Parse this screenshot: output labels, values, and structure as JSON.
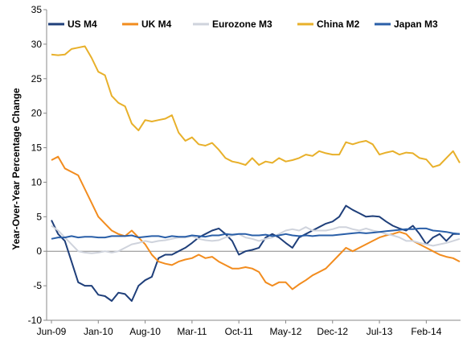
{
  "chart_data": {
    "type": "line",
    "title": "",
    "xlabel": "",
    "ylabel": "Year-Over-Year Percentage Change",
    "ylim": [
      -10,
      35
    ],
    "yticks": [
      -10,
      -5,
      0,
      5,
      10,
      15,
      20,
      25,
      30,
      35
    ],
    "x_tick_labels": [
      "Jun-09",
      "Jan-10",
      "Aug-10",
      "Mar-11",
      "Oct-11",
      "May-12",
      "Dec-12",
      "Jul-13",
      "Feb-14"
    ],
    "x_start": "2009-06",
    "x_end": "2014-07",
    "grid": false,
    "legend_position": "top",
    "series": [
      {
        "name": "US M4",
        "color": "#1f3f7a",
        "values": [
          4.5,
          2.5,
          1.5,
          -1.5,
          -4.5,
          -5.0,
          -5.0,
          -6.3,
          -6.5,
          -7.2,
          -6.0,
          -6.2,
          -7.2,
          -5.0,
          -4.2,
          -3.7,
          -1.0,
          -0.5,
          -0.5,
          0.0,
          0.5,
          1.2,
          2.0,
          2.5,
          3.0,
          3.3,
          2.5,
          1.5,
          -0.5,
          0.0,
          0.2,
          0.5,
          2.0,
          2.5,
          2.0,
          1.2,
          0.5,
          2.0,
          2.5,
          3.0,
          3.5,
          4.0,
          4.3,
          5.0,
          6.6,
          6.0,
          5.5,
          5.0,
          5.1,
          5.0,
          4.3,
          3.7,
          3.3,
          3.0,
          3.7,
          2.5,
          1.0,
          2.0,
          2.5,
          1.5,
          2.5,
          2.5
        ]
      },
      {
        "name": "UK M4",
        "color": "#f28c1e",
        "values": [
          13.2,
          13.7,
          12.0,
          11.5,
          11.0,
          9.0,
          7.0,
          5.0,
          4.0,
          3.0,
          2.5,
          2.2,
          3.0,
          2.0,
          1.0,
          -0.5,
          -1.5,
          -1.8,
          -2.0,
          -1.5,
          -1.2,
          -1.0,
          -0.5,
          -1.0,
          -0.8,
          -1.5,
          -2.0,
          -2.5,
          -2.5,
          -2.3,
          -2.5,
          -3.0,
          -4.5,
          -5.0,
          -4.5,
          -4.5,
          -5.5,
          -4.8,
          -4.2,
          -3.5,
          -3.0,
          -2.5,
          -1.5,
          -0.5,
          0.5,
          0.0,
          0.5,
          1.0,
          1.5,
          2.0,
          2.3,
          2.5,
          2.8,
          2.5,
          1.5,
          1.0,
          0.5,
          0.0,
          -0.5,
          -0.8,
          -1.0,
          -1.5
        ]
      },
      {
        "name": "Eurozone M3",
        "color": "#cfd3dc",
        "values": [
          3.7,
          3.0,
          2.0,
          1.0,
          0.0,
          -0.2,
          -0.3,
          -0.2,
          0.0,
          -0.2,
          0.0,
          0.5,
          1.0,
          1.2,
          1.5,
          1.3,
          1.5,
          1.6,
          1.8,
          2.0,
          2.0,
          2.2,
          1.8,
          1.6,
          1.5,
          1.6,
          2.0,
          2.3,
          2.5,
          2.0,
          1.8,
          1.5,
          1.8,
          2.0,
          2.5,
          3.0,
          3.2,
          3.0,
          3.5,
          3.0,
          3.0,
          3.0,
          3.2,
          3.5,
          3.5,
          3.2,
          3.0,
          3.3,
          3.0,
          2.8,
          2.5,
          2.3,
          2.0,
          1.5,
          1.5,
          1.2,
          1.0,
          0.8,
          1.0,
          1.2,
          1.5,
          1.8
        ]
      },
      {
        "name": "China M2",
        "color": "#e8b02a",
        "values": [
          28.5,
          28.4,
          28.5,
          29.3,
          29.5,
          29.7,
          28.0,
          26.0,
          25.5,
          22.5,
          21.5,
          21.0,
          18.5,
          17.5,
          19.0,
          18.8,
          19.0,
          19.2,
          19.7,
          17.2,
          16.0,
          16.5,
          15.5,
          15.3,
          15.7,
          14.7,
          13.5,
          13.0,
          12.8,
          12.5,
          13.5,
          12.5,
          13.0,
          12.8,
          13.5,
          13.0,
          13.2,
          13.5,
          14.0,
          13.8,
          14.5,
          14.2,
          14.0,
          14.0,
          15.8,
          15.5,
          15.8,
          16.0,
          15.5,
          14.0,
          14.3,
          14.5,
          14.0,
          14.3,
          14.2,
          13.5,
          13.3,
          12.2,
          12.5,
          13.5,
          14.5,
          12.8
        ]
      },
      {
        "name": "Japan M3",
        "color": "#2a5fa8",
        "values": [
          1.8,
          2.0,
          2.0,
          2.2,
          2.0,
          2.1,
          2.1,
          2.0,
          2.0,
          2.2,
          2.2,
          2.2,
          2.3,
          2.0,
          2.1,
          2.2,
          2.2,
          2.0,
          2.2,
          2.1,
          2.1,
          2.3,
          2.2,
          2.1,
          2.3,
          2.3,
          2.5,
          2.4,
          2.5,
          2.5,
          2.3,
          2.3,
          2.4,
          2.2,
          2.3,
          2.5,
          2.3,
          2.2,
          2.3,
          2.2,
          2.3,
          2.3,
          2.3,
          2.4,
          2.5,
          2.6,
          2.7,
          2.6,
          2.7,
          2.8,
          2.9,
          3.0,
          3.1,
          3.2,
          3.2,
          3.3,
          3.3,
          3.0,
          2.9,
          2.8,
          2.6,
          2.5
        ]
      }
    ]
  }
}
